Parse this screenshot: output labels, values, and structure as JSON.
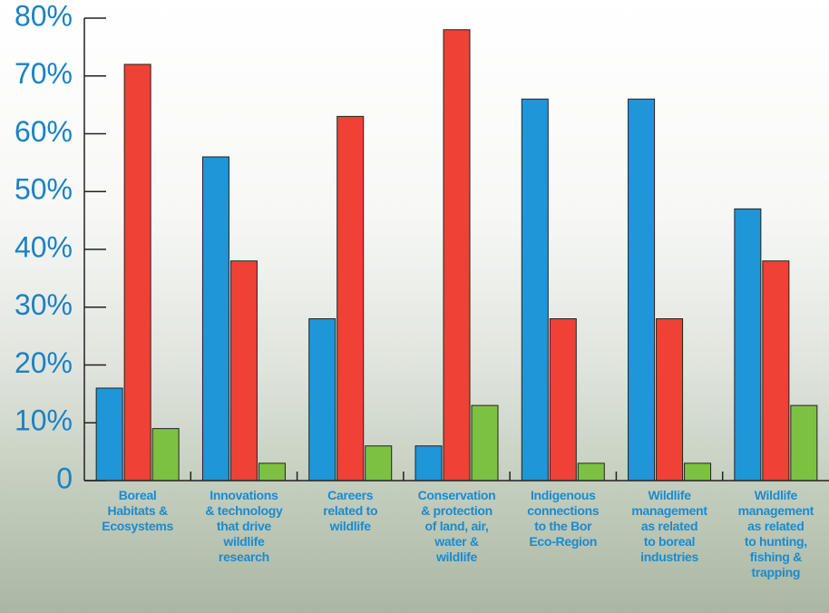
{
  "chart_data": {
    "type": "bar",
    "categories": [
      "Boreal\nHabitats &\nEcosystems",
      "Innovations\n& technology\nthat drive\nwildlife\nresearch",
      "Careers\nrelated to\nwildlife",
      "Conservation\n& protection\nof land, air,\nwater &\nwildlife",
      "Indigenous\nconnections\nto the Bor\nEco-Region",
      "Wildlife\nmanagement\nas related\nto boreal\nindustries",
      "Wildlife\nmanagement\nas related\nto hunting,\nfishing &\ntrapping"
    ],
    "series": [
      {
        "color": "#1f96d8",
        "values": [
          16,
          56,
          28,
          6,
          66,
          66,
          47
        ]
      },
      {
        "color": "#ef4136",
        "values": [
          72,
          38,
          63,
          78,
          28,
          28,
          38
        ]
      },
      {
        "color": "#7dc142",
        "values": [
          9,
          3,
          6,
          13,
          3,
          3,
          13
        ]
      }
    ],
    "ylim": [
      0,
      80
    ],
    "yticks": [
      0,
      {
        "value": 10,
        "label": "10%"
      },
      {
        "value": 20,
        "label": "20%"
      },
      {
        "value": 30,
        "label": "30%"
      },
      {
        "value": 40,
        "label": "40%"
      },
      {
        "value": 50,
        "label": "50%"
      },
      {
        "value": 60,
        "label": "60%"
      },
      {
        "value": 70,
        "label": "70%"
      },
      {
        "value": 80,
        "label": "80%"
      }
    ]
  }
}
